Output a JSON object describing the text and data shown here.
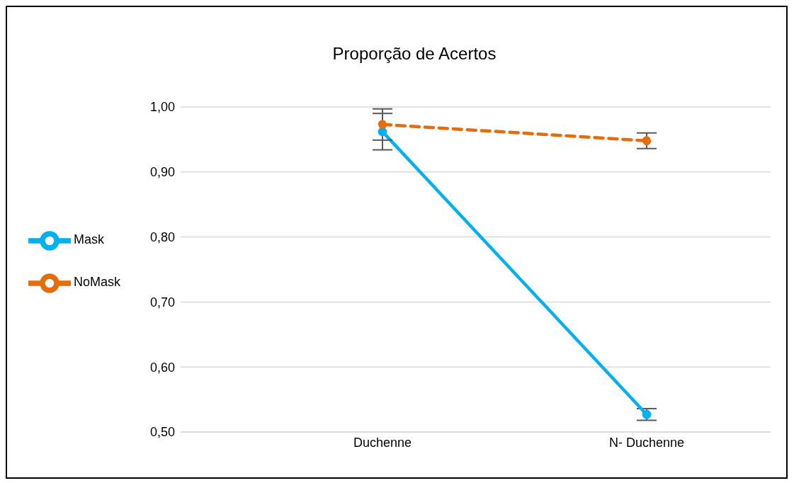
{
  "chart_data": {
    "type": "line",
    "title": "Proporção de Acertos",
    "categories": [
      "Duchenne",
      "N- Duchenne"
    ],
    "series": [
      {
        "name": "Mask",
        "color": "#00b0f0",
        "values": [
          0.962,
          0.527
        ],
        "errors": [
          0.028,
          0.009
        ],
        "line_style": "solid"
      },
      {
        "name": "NoMask",
        "color": "#e46c0a",
        "values": [
          0.973,
          0.948
        ],
        "errors": [
          0.024,
          0.012
        ],
        "line_style": "dashed"
      }
    ],
    "ylim": [
      0.5,
      1.0
    ],
    "yticks": [
      {
        "value": 0.5,
        "label": "0,50"
      },
      {
        "value": 0.6,
        "label": "0,60"
      },
      {
        "value": 0.7,
        "label": "0,70"
      },
      {
        "value": 0.8,
        "label": "0,80"
      },
      {
        "value": 0.9,
        "label": "0,90"
      },
      {
        "value": 1.0,
        "label": "1,00"
      }
    ],
    "grid": "y",
    "legend": "left",
    "marker": "circle"
  }
}
